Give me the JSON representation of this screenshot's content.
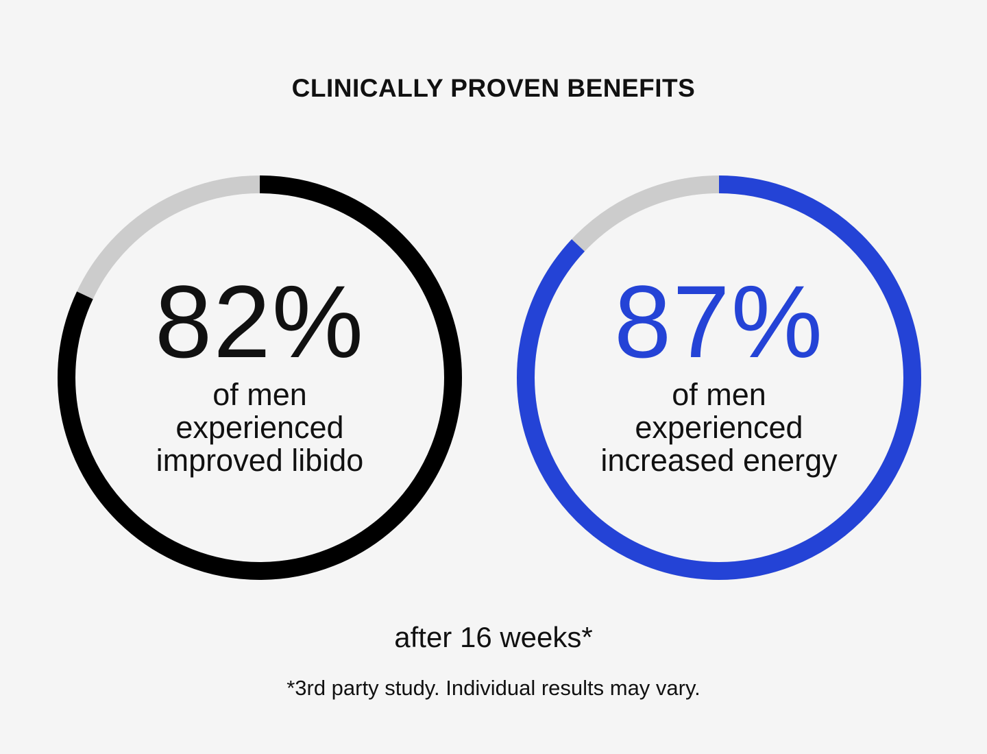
{
  "title": "CLINICALLY PROVEN BENEFITS",
  "chart_data": {
    "type": "donut",
    "track_color": "#cccccc",
    "stats": [
      {
        "value": 82,
        "display": "82%",
        "caption_lines": [
          "of men",
          "experienced",
          "improved libido"
        ],
        "color": "#000000",
        "text_color": "#111111"
      },
      {
        "value": 87,
        "display": "87%",
        "caption_lines": [
          "of men",
          "experienced",
          "increased energy"
        ],
        "color": "#2443d6",
        "text_color": "#2443d6"
      }
    ]
  },
  "period": "after 16 weeks*",
  "footnote": "*3rd party study. Individual results may vary."
}
